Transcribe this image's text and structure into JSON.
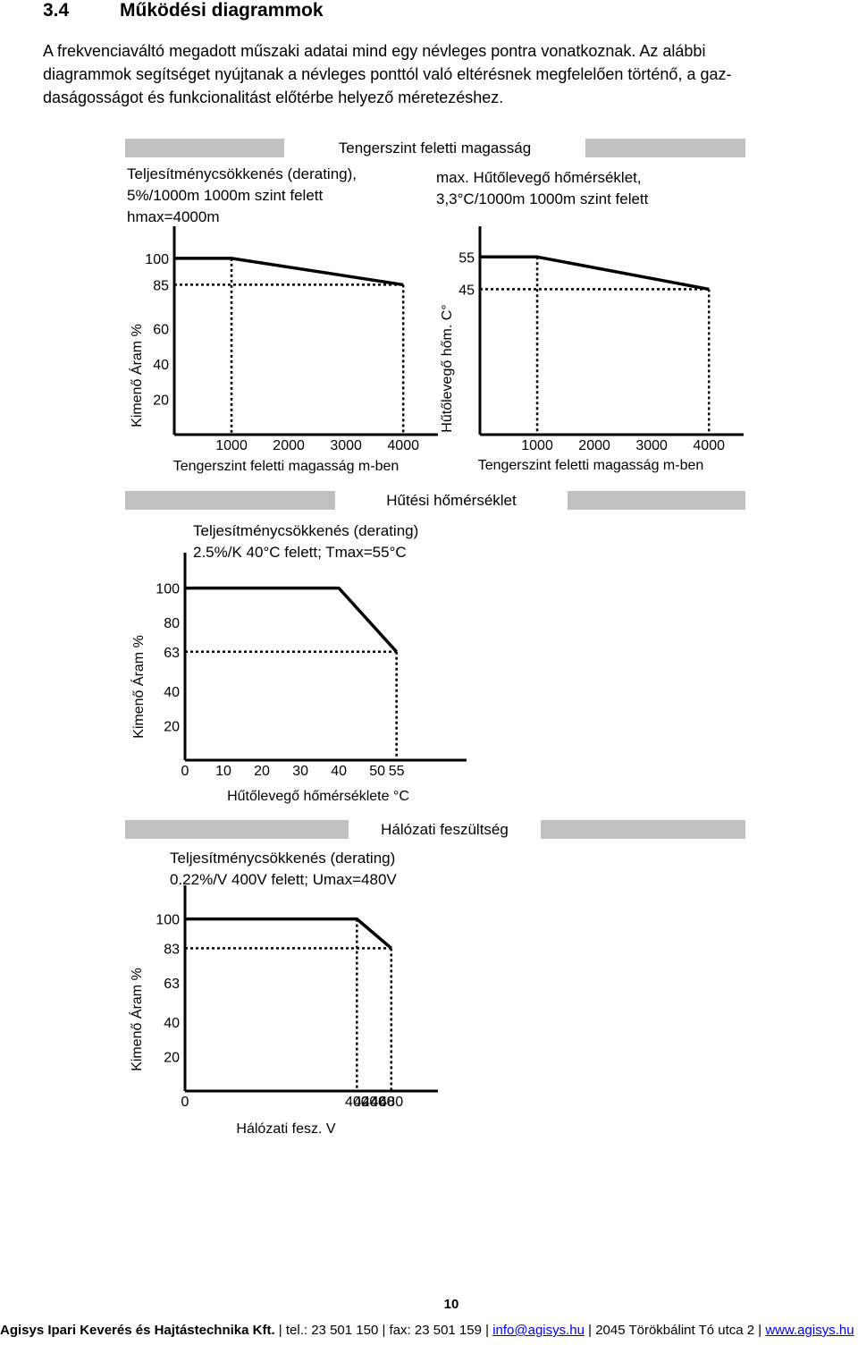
{
  "section": {
    "number": "3.4",
    "title": "Működési diagrammok"
  },
  "intro_lines": [
    "A frekvenciaváltó megadott műszaki adatai mind egy névleges pontra vonatkoznak. Az alábbi",
    "diagrammok segítséget nyújtanak a névleges ponttól való eltérésnek megfelelően történő, a gaz-",
    "daságosságot és funkcionalitást előtérbe helyező méretezéshez."
  ],
  "panels": [
    {
      "title": "Tengerszint feletti magasság"
    },
    {
      "title": "Hűtési hőmérséklet"
    },
    {
      "title": "Hálózati feszültség"
    }
  ],
  "notes": {
    "altitude_current": [
      "Teljesítménycsökkenés (derating),",
      "5%/1000m 1000m szint felett",
      "hmax=4000m"
    ],
    "altitude_temp": [
      "max. Hűtőlevegő hőmérséklet,",
      "3,3°C/1000m 1000m szint felett"
    ],
    "cooling": [
      "Teljesítménycsökkenés (derating)",
      "2.5%/K 40°C felett; Tmax=55°C"
    ],
    "voltage": [
      "Teljesítménycsökkenés (derating)",
      "0.22%/V 400V felett; Umax=480V"
    ]
  },
  "chart_data": [
    {
      "type": "line",
      "xlabel": "Tengerszint feletti magasság m-ben",
      "ylabel": "Kimenő Áram %",
      "x_ticks": [
        1000,
        2000,
        3000,
        4000
      ],
      "y_ticks": [
        100,
        85,
        60,
        40,
        20
      ],
      "xlim": [
        0,
        4200
      ],
      "ylim": [
        0,
        105
      ],
      "series": [
        {
          "x": [
            0,
            1000,
            4000
          ],
          "y": [
            100,
            100,
            85
          ]
        }
      ],
      "guides": [
        {
          "x": 1000,
          "y": 100
        },
        {
          "x": 4000,
          "y": 85
        }
      ]
    },
    {
      "type": "line",
      "xlabel": "Tengerszint feletti magasság m-ben",
      "ylabel": "Hűtőlevegő hőm. C°",
      "x_ticks": [
        1000,
        2000,
        3000,
        4000
      ],
      "y_ticks": [
        55,
        45
      ],
      "xlim": [
        0,
        4200
      ],
      "ylim": [
        0,
        57.3
      ],
      "series": [
        {
          "x": [
            0,
            1000,
            4000
          ],
          "y": [
            55,
            55,
            45
          ]
        }
      ],
      "guides": [
        {
          "x": 1000,
          "y": 55
        },
        {
          "x": 4000,
          "y": 45
        }
      ]
    },
    {
      "type": "line",
      "xlabel": "Hűtőlevegő hőmérséklete °C",
      "ylabel": "Kimenő Áram %",
      "x_ticks": [
        0,
        10,
        20,
        30,
        40,
        50,
        55
      ],
      "y_ticks": [
        100,
        80,
        63,
        40,
        20
      ],
      "xlim": [
        0,
        66
      ],
      "ylim": [
        0,
        105
      ],
      "series": [
        {
          "x": [
            0,
            40,
            55
          ],
          "y": [
            100,
            100,
            63
          ]
        }
      ],
      "guides": [
        {
          "x": 55,
          "y": 63
        }
      ]
    },
    {
      "type": "line",
      "xlabel": "Hálózati fesz. V",
      "ylabel": "Kimenő Áram %",
      "x_ticks": [
        0,
        400,
        420,
        440,
        460,
        480
      ],
      "y_ticks": [
        100,
        83,
        63,
        40,
        20
      ],
      "xlim": [
        0,
        520
      ],
      "ylim": [
        0,
        105
      ],
      "series": [
        {
          "x": [
            0,
            400,
            480
          ],
          "y": [
            100,
            100,
            83
          ]
        }
      ],
      "guides": [
        {
          "x": 400,
          "y": 100
        },
        {
          "x": 480,
          "y": 83
        }
      ]
    }
  ],
  "page_number": "10",
  "footer": {
    "company": "Agisys Ipari Keverés és Hajtástechnika Kft.",
    "tel": "tel.: 23 501 150",
    "fax": "fax: 23 501 159",
    "email": "info@agisys.hu",
    "address": "2045 Törökbálint Tó utca 2",
    "web": "www.agisys.hu"
  }
}
